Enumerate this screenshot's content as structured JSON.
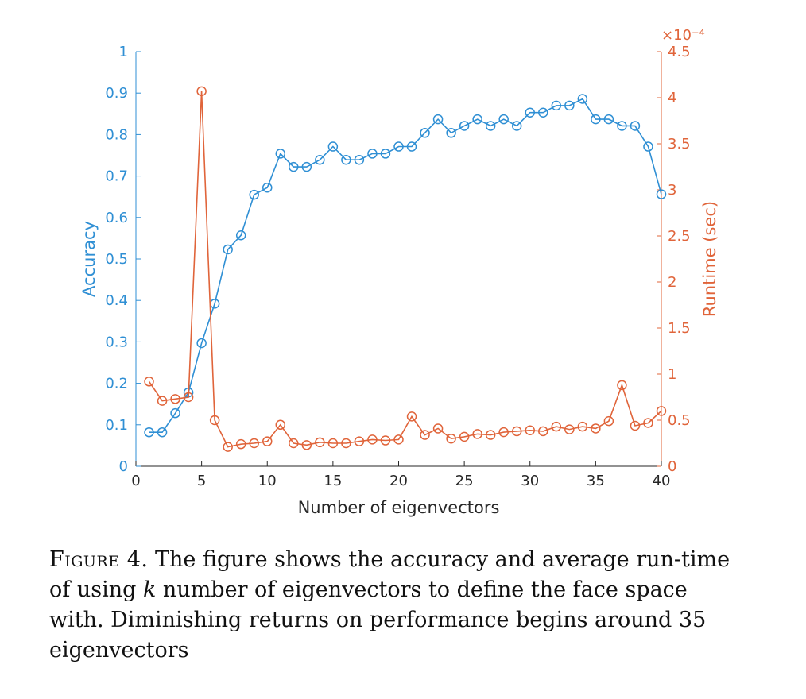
{
  "chart_data": {
    "type": "line",
    "xlabel": "Number of eigenvectors",
    "ylabel_left": "Accuracy",
    "ylabel_right": "Runtime (sec)",
    "right_axis_exponent": "×10⁻⁴",
    "xlim": [
      0,
      40
    ],
    "ylim_left": [
      0,
      1
    ],
    "ylim_right": [
      0,
      4.5
    ],
    "x_ticks": [
      0,
      5,
      10,
      15,
      20,
      25,
      30,
      35,
      40
    ],
    "y_left_ticks": [
      0,
      0.1,
      0.2,
      0.3,
      0.4,
      0.5,
      0.6,
      0.7,
      0.8,
      0.9,
      1
    ],
    "y_left_tick_labels": [
      "0",
      "0.1",
      "0.2",
      "0.3",
      "0.4",
      "0.5",
      "0.6",
      "0.7",
      "0.8",
      "0.9",
      "1"
    ],
    "y_right_ticks": [
      0,
      0.5,
      1,
      1.5,
      2,
      2.5,
      3,
      3.5,
      4,
      4.5
    ],
    "y_right_tick_labels": [
      "0",
      "0.5",
      "1",
      "1.5",
      "2",
      "2.5",
      "3",
      "3.5",
      "4",
      "4.5"
    ],
    "series": [
      {
        "name": "Accuracy",
        "axis": "left",
        "color": "#2f8fd4",
        "x": [
          1,
          2,
          3,
          4,
          5,
          6,
          7,
          8,
          9,
          10,
          11,
          12,
          13,
          14,
          15,
          16,
          17,
          18,
          19,
          20,
          21,
          22,
          23,
          24,
          25,
          26,
          27,
          28,
          29,
          30,
          31,
          32,
          33,
          34,
          35,
          36,
          37,
          38,
          39,
          40
        ],
        "values": [
          0.082,
          0.082,
          0.128,
          0.178,
          0.297,
          0.392,
          0.523,
          0.557,
          0.655,
          0.672,
          0.754,
          0.722,
          0.722,
          0.739,
          0.771,
          0.739,
          0.739,
          0.754,
          0.754,
          0.771,
          0.771,
          0.804,
          0.837,
          0.804,
          0.821,
          0.837,
          0.821,
          0.837,
          0.821,
          0.853,
          0.853,
          0.87,
          0.87,
          0.886,
          0.837,
          0.837,
          0.821,
          0.821,
          0.771,
          0.656
        ]
      },
      {
        "name": "Runtime (sec)",
        "axis": "right",
        "color": "#e0643a",
        "x": [
          1,
          2,
          3,
          4,
          5,
          6,
          7,
          8,
          9,
          10,
          11,
          12,
          13,
          14,
          15,
          16,
          17,
          18,
          19,
          20,
          21,
          22,
          23,
          24,
          25,
          26,
          27,
          28,
          29,
          30,
          31,
          32,
          33,
          34,
          35,
          36,
          37,
          38,
          39,
          40
        ],
        "values": [
          0.92,
          0.71,
          0.73,
          0.75,
          4.07,
          0.5,
          0.21,
          0.24,
          0.25,
          0.27,
          0.45,
          0.25,
          0.23,
          0.26,
          0.25,
          0.25,
          0.27,
          0.29,
          0.28,
          0.29,
          0.54,
          0.34,
          0.41,
          0.3,
          0.32,
          0.35,
          0.34,
          0.37,
          0.38,
          0.39,
          0.38,
          0.43,
          0.4,
          0.43,
          0.41,
          0.49,
          0.88,
          0.44,
          0.47,
          0.6
        ]
      }
    ]
  },
  "caption": {
    "label": "Figure 4.",
    "text": " The figure shows the accuracy and average run-time of using ",
    "variable": "k",
    "text_end": " number of eigenvectors to define the face space with. Diminishing returns on performance begins around 35 eigenvectors"
  }
}
